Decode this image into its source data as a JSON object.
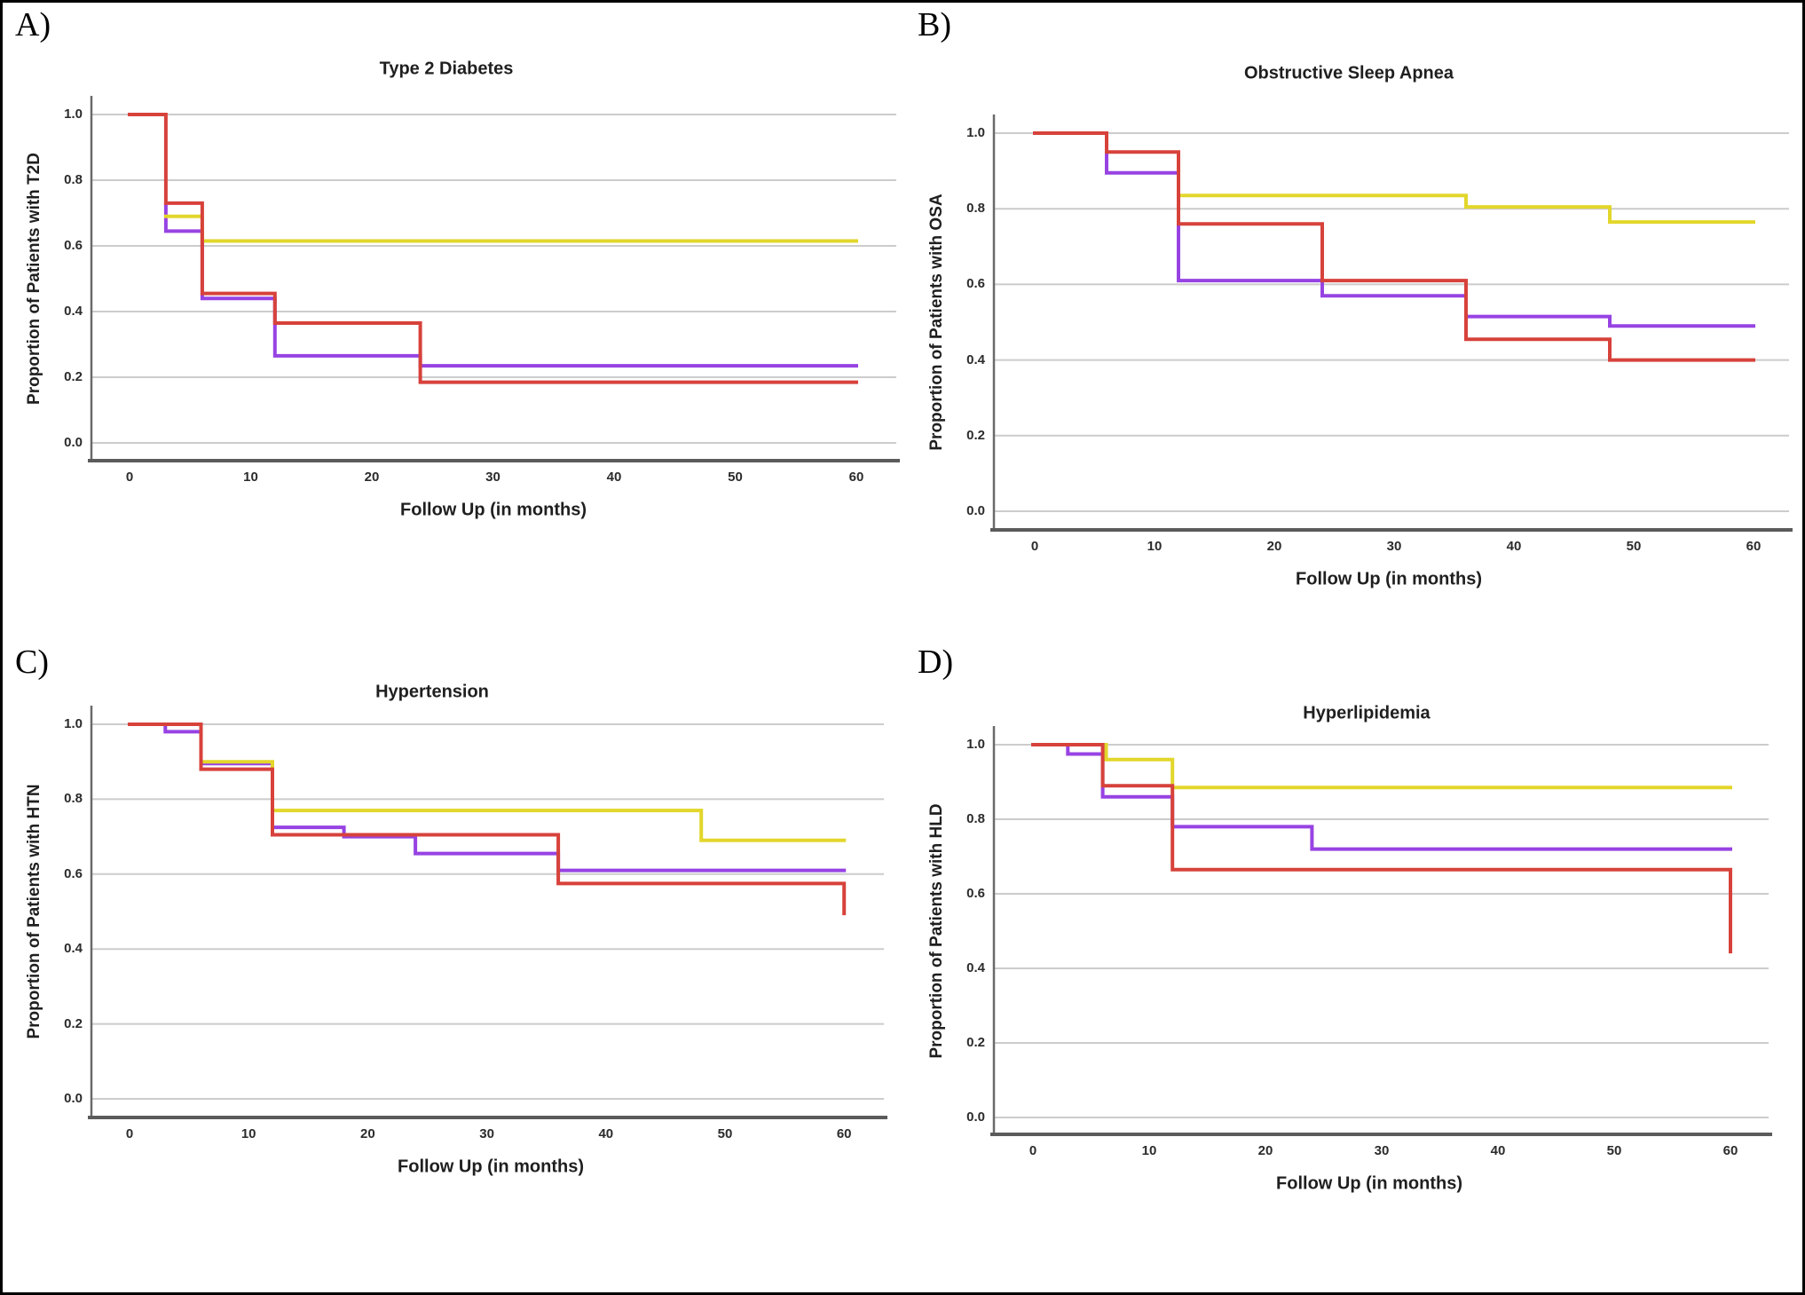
{
  "chart_data": [
    {
      "type": "line",
      "subtype": "kaplan_meier_step",
      "panel_letter": "A)",
      "title": "Type 2 Diabetes",
      "xlabel": "Follow Up (in months)",
      "ylabel": "Proportion of Patients with T2D",
      "x_ticks": [
        0,
        10,
        20,
        30,
        40,
        50,
        60
      ],
      "y_ticks": [
        "1.0",
        "0.8",
        "0.6",
        "0.4",
        "0.2",
        "0.0"
      ],
      "xlim": [
        0,
        60
      ],
      "ylim": [
        0.0,
        1.0
      ],
      "grid": "horizontal",
      "gridline_color": "#cccccc",
      "legend": "none",
      "series": [
        {
          "name": "purple",
          "color": "#9743E3",
          "points": [
            [
              3,
              0.725
            ],
            [
              3,
              0.645
            ],
            [
              6,
              0.645
            ],
            [
              6,
              0.44
            ],
            [
              12,
              0.44
            ],
            [
              12,
              0.265
            ],
            [
              24,
              0.265
            ],
            [
              24,
              0.235
            ],
            [
              60,
              0.235
            ]
          ]
        },
        {
          "name": "yellow",
          "color": "#E2D62B",
          "points": [
            [
              3,
              0.69
            ],
            [
              6,
              0.69
            ],
            [
              6,
              0.615
            ],
            [
              60,
              0.615
            ]
          ]
        },
        {
          "name": "red",
          "color": "#D7423B",
          "points": [
            [
              0,
              1.0
            ],
            [
              3,
              1.0
            ],
            [
              3,
              0.73
            ],
            [
              6,
              0.73
            ],
            [
              6,
              0.455
            ],
            [
              12,
              0.455
            ],
            [
              12,
              0.365
            ],
            [
              24,
              0.365
            ],
            [
              24,
              0.185
            ],
            [
              60,
              0.185
            ]
          ]
        }
      ]
    },
    {
      "type": "line",
      "subtype": "kaplan_meier_step",
      "panel_letter": "B)",
      "title": "Obstructive Sleep Apnea",
      "xlabel": "Follow Up (in months)",
      "ylabel": "Proportion of Patients with OSA",
      "x_ticks": [
        0,
        10,
        20,
        30,
        40,
        50,
        60
      ],
      "y_ticks": [
        "1.0",
        "0.8",
        "0.6",
        "0.4",
        "0.2",
        "0.0"
      ],
      "xlim": [
        0,
        60
      ],
      "ylim": [
        0.0,
        1.0
      ],
      "grid": "horizontal",
      "gridline_color": "#cccccc",
      "legend": "none",
      "series": [
        {
          "name": "purple",
          "color": "#9743E3",
          "points": [
            [
              6,
              0.95
            ],
            [
              6,
              0.895
            ],
            [
              12,
              0.895
            ],
            [
              12,
              0.61
            ],
            [
              24,
              0.61
            ],
            [
              24,
              0.57
            ],
            [
              36,
              0.57
            ],
            [
              36,
              0.515
            ],
            [
              48,
              0.515
            ],
            [
              48,
              0.49
            ],
            [
              60,
              0.49
            ]
          ]
        },
        {
          "name": "yellow",
          "color": "#E2D62B",
          "points": [
            [
              12,
              0.835
            ],
            [
              36,
              0.835
            ],
            [
              36,
              0.805
            ],
            [
              48,
              0.805
            ],
            [
              48,
              0.765
            ],
            [
              60,
              0.765
            ]
          ]
        },
        {
          "name": "red",
          "color": "#D7423B",
          "points": [
            [
              0,
              1.0
            ],
            [
              6,
              1.0
            ],
            [
              6,
              0.95
            ],
            [
              12,
              0.95
            ],
            [
              12,
              0.76
            ],
            [
              24,
              0.76
            ],
            [
              24,
              0.61
            ],
            [
              36,
              0.61
            ],
            [
              36,
              0.455
            ],
            [
              48,
              0.455
            ],
            [
              48,
              0.4
            ],
            [
              60,
              0.4
            ]
          ]
        }
      ]
    },
    {
      "type": "line",
      "subtype": "kaplan_meier_step",
      "panel_letter": "C)",
      "title": "Hypertension",
      "xlabel": "Follow Up (in months)",
      "ylabel": "Proportion of Patients with HTN",
      "x_ticks": [
        0,
        10,
        20,
        30,
        40,
        50,
        60
      ],
      "y_ticks": [
        "1.0",
        "0.8",
        "0.6",
        "0.4",
        "0.2",
        "0.0"
      ],
      "xlim": [
        0,
        60
      ],
      "ylim": [
        0.0,
        1.0
      ],
      "grid": "horizontal",
      "gridline_color": "#cccccc",
      "legend": "none",
      "series": [
        {
          "name": "purple",
          "color": "#9743E3",
          "points": [
            [
              3,
              1.0
            ],
            [
              3,
              0.98
            ],
            [
              6,
              0.98
            ],
            [
              6,
              0.895
            ],
            [
              12,
              0.895
            ],
            [
              12,
              0.725
            ],
            [
              18,
              0.725
            ],
            [
              18,
              0.7
            ],
            [
              24,
              0.7
            ],
            [
              24,
              0.655
            ],
            [
              36,
              0.655
            ],
            [
              36,
              0.61
            ],
            [
              60,
              0.61
            ]
          ]
        },
        {
          "name": "yellow",
          "color": "#E2D62B",
          "points": [
            [
              6,
              0.9
            ],
            [
              12,
              0.9
            ],
            [
              12,
              0.77
            ],
            [
              48,
              0.77
            ],
            [
              48,
              0.69
            ],
            [
              60,
              0.69
            ]
          ]
        },
        {
          "name": "red",
          "color": "#D7423B",
          "points": [
            [
              0,
              1.0
            ],
            [
              6,
              1.0
            ],
            [
              6,
              0.88
            ],
            [
              12,
              0.88
            ],
            [
              12,
              0.705
            ],
            [
              36,
              0.705
            ],
            [
              36,
              0.575
            ],
            [
              60,
              0.575
            ],
            [
              60,
              0.495
            ]
          ]
        }
      ]
    },
    {
      "type": "line",
      "subtype": "kaplan_meier_step",
      "panel_letter": "D)",
      "title": "Hyperlipidemia",
      "xlabel": "Follow Up (in months)",
      "ylabel": "Proportion of Patients with HLD",
      "x_ticks": [
        0,
        10,
        20,
        30,
        40,
        50,
        60
      ],
      "y_ticks": [
        "1.0",
        "0.8",
        "0.6",
        "0.4",
        "0.2",
        "0.0"
      ],
      "xlim": [
        0,
        60
      ],
      "ylim": [
        0.0,
        1.0
      ],
      "grid": "horizontal",
      "gridline_color": "#cccccc",
      "legend": "none",
      "series": [
        {
          "name": "purple",
          "color": "#9743E3",
          "points": [
            [
              3,
              1.0
            ],
            [
              3,
              0.975
            ],
            [
              6,
              0.975
            ],
            [
              6,
              0.86
            ],
            [
              12,
              0.86
            ],
            [
              12,
              0.78
            ],
            [
              24,
              0.78
            ],
            [
              24,
              0.72
            ],
            [
              60,
              0.72
            ]
          ]
        },
        {
          "name": "yellow",
          "color": "#E2D62B",
          "points": [
            [
              6.3,
              1.0
            ],
            [
              6.3,
              0.96
            ],
            [
              12,
              0.96
            ],
            [
              12,
              0.885
            ],
            [
              60,
              0.885
            ]
          ]
        },
        {
          "name": "red",
          "color": "#D7423B",
          "points": [
            [
              0,
              1.0
            ],
            [
              6,
              1.0
            ],
            [
              6,
              0.89
            ],
            [
              12,
              0.89
            ],
            [
              12,
              0.665
            ],
            [
              60,
              0.665
            ],
            [
              60,
              0.445
            ]
          ]
        }
      ]
    }
  ]
}
